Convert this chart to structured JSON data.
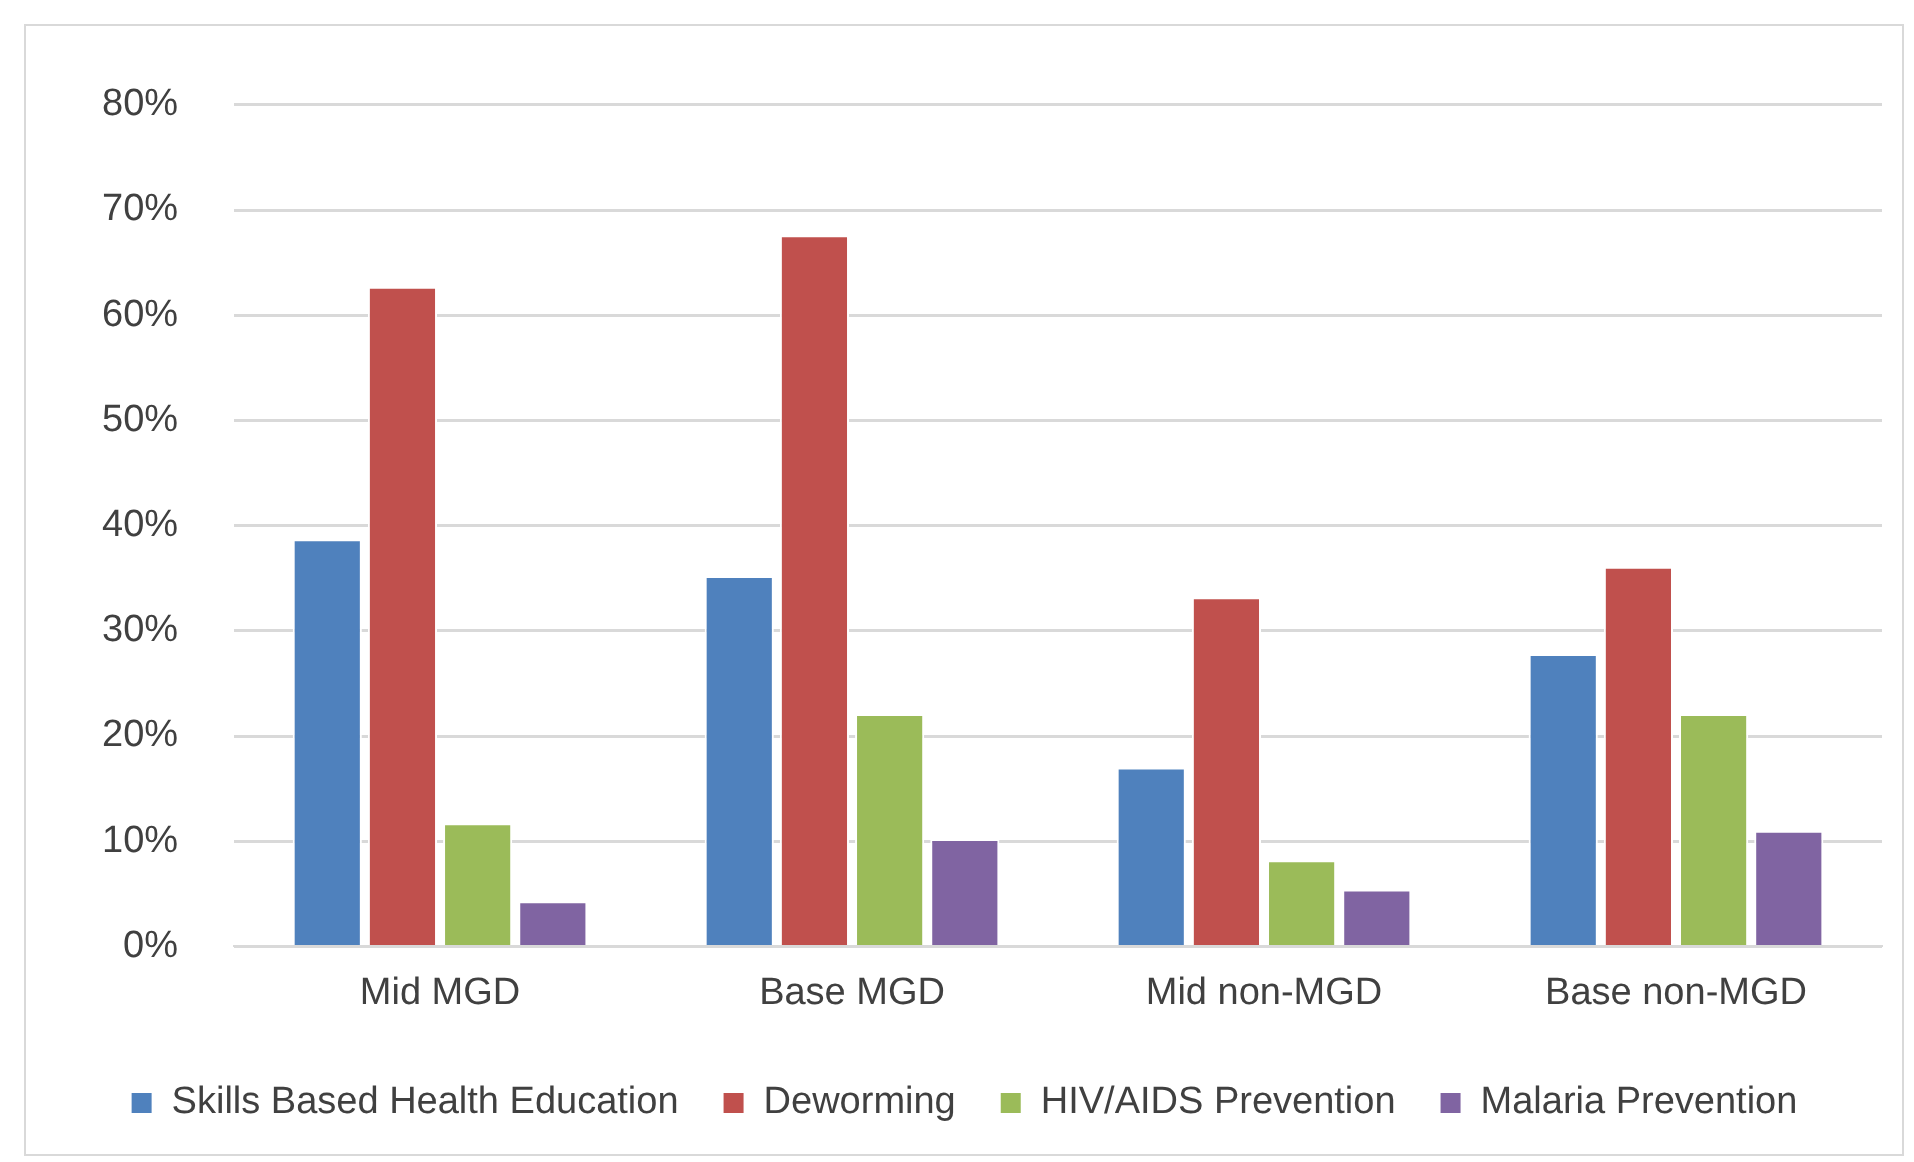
{
  "chart_data": {
    "type": "bar",
    "categories": [
      "Mid MGD",
      "Base MGD",
      "Mid non-MGD",
      "Base non-MGD"
    ],
    "series": [
      {
        "name": "Skills Based Health Education",
        "color": "#4f81bd",
        "values": [
          38.7,
          35.2,
          17.0,
          27.8
        ]
      },
      {
        "name": "Deworming",
        "color": "#c0504d",
        "values": [
          62.7,
          67.6,
          33.2,
          36.1
        ]
      },
      {
        "name": "HIV/AIDS Prevention",
        "color": "#9bbb59",
        "values": [
          11.7,
          22.1,
          8.2,
          22.1
        ]
      },
      {
        "name": "Malaria Prevention",
        "color": "#8064a2",
        "values": [
          4.3,
          10.2,
          5.4,
          11.0
        ]
      }
    ],
    "ylim": [
      0,
      80
    ],
    "yticks": [
      {
        "value": 0,
        "label": "0%"
      },
      {
        "value": 10,
        "label": "10%"
      },
      {
        "value": 20,
        "label": "20%"
      },
      {
        "value": 30,
        "label": "30%"
      },
      {
        "value": 40,
        "label": "40%"
      },
      {
        "value": 50,
        "label": "50%"
      },
      {
        "value": 60,
        "label": "60%"
      },
      {
        "value": 70,
        "label": "70%"
      },
      {
        "value": 80,
        "label": "80%"
      }
    ],
    "grid": "y",
    "legend": "bottom"
  }
}
